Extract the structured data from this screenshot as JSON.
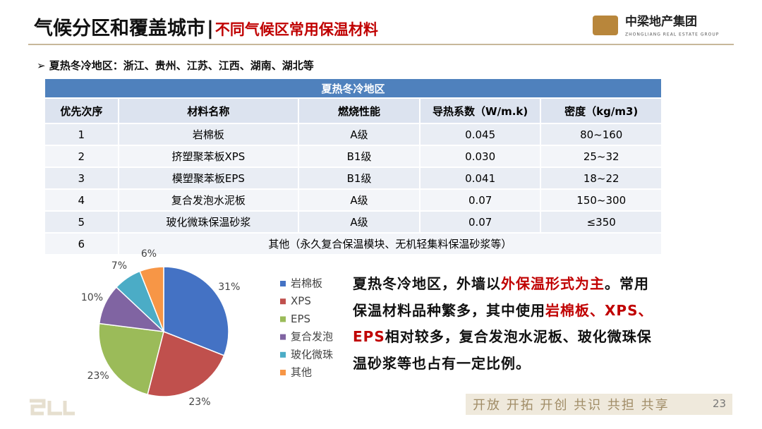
{
  "header": {
    "title": "气候分区和覆盖城市",
    "separator": "|",
    "subtitle": "不同气候区常用保温材料",
    "logo_name": "中梁地产集团",
    "logo_en": "ZHONGLIANG REAL ESTATE GROUP"
  },
  "section": "夏热冬冷地区：浙江、贵州、江苏、江西、湖南、湖北等",
  "table": {
    "caption": "夏热冬冷地区",
    "columns": [
      "优先次序",
      "材料名称",
      "燃烧性能",
      "导热系数（W/m.k)",
      "密度（kg/m3)"
    ],
    "rows": [
      [
        "1",
        "岩棉板",
        "A级",
        "0.045",
        "80~160"
      ],
      [
        "2",
        "挤塑聚苯板XPS",
        "B1级",
        "0.030",
        "25~32"
      ],
      [
        "3",
        "模塑聚苯板EPS",
        "B1级",
        "0.041",
        "18~22"
      ],
      [
        "4",
        "复合发泡水泥板",
        "A级",
        "0.07",
        "150~300"
      ],
      [
        "5",
        "玻化微珠保温砂浆",
        "A级",
        "0.07",
        "≤350"
      ],
      [
        "6",
        "其他（永久复合保温模块、无机轻集料保温砂浆等）"
      ]
    ]
  },
  "chart_data": {
    "type": "pie",
    "categories": [
      "岩棉板",
      "XPS",
      "EPS",
      "复合发泡",
      "玻化微珠",
      "其他"
    ],
    "values": [
      31,
      23,
      23,
      10,
      7,
      6
    ],
    "value_labels": [
      "31%",
      "23%",
      "23%",
      "10%",
      "7%",
      "6%"
    ],
    "colors": [
      "#4472c4",
      "#c0504d",
      "#9bbb59",
      "#8064a2",
      "#4bacc6",
      "#f79646"
    ],
    "legend": "right"
  },
  "paragraph": [
    {
      "text": "夏热冬冷地区，外墙以",
      "highlight": false
    },
    {
      "text": "外保温形式为主",
      "highlight": true
    },
    {
      "text": "。常用保温材料品种繁多，其中使用",
      "highlight": false
    },
    {
      "text": "岩棉板、XPS、EPS",
      "highlight": true
    },
    {
      "text": "相对较多，复合发泡水泥板、玻化微珠保温砂浆等也占有一定比例。",
      "highlight": false
    }
  ],
  "footer": {
    "slogan": "开放 开拓 开创 共识 共担 共享",
    "page": "23"
  }
}
